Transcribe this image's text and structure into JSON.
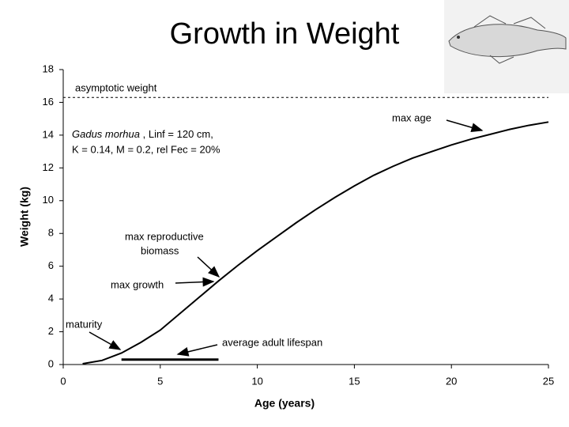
{
  "chart_data": {
    "type": "line",
    "title": "Growth in Weight",
    "x_label": "Age (years)",
    "y_label": "Weight (kg)",
    "x": [
      1,
      2,
      3,
      4,
      5,
      6,
      7,
      8,
      9,
      10,
      11,
      12,
      13,
      14,
      15,
      16,
      17,
      18,
      19,
      20,
      21,
      22,
      23,
      24,
      25
    ],
    "values": [
      0.05,
      0.25,
      0.7,
      1.35,
      2.1,
      3.1,
      4.1,
      5.1,
      6.05,
      6.95,
      7.8,
      8.65,
      9.45,
      10.2,
      10.9,
      11.55,
      12.1,
      12.6,
      13.0,
      13.4,
      13.75,
      14.05,
      14.35,
      14.6,
      14.8
    ],
    "color": "#000000",
    "xlim": [
      0,
      25
    ],
    "xticks": [
      0,
      5,
      10,
      15,
      20,
      25
    ],
    "ylim": [
      0,
      18
    ],
    "yticks": [
      0,
      2,
      4,
      6,
      8,
      10,
      12,
      14,
      16,
      18
    ],
    "grid": false,
    "asymptote": {
      "label": "asymptotic weight",
      "value": 16.3
    },
    "lifespan": {
      "label": "average adult lifespan",
      "x": [
        3,
        8
      ],
      "value": 0.3
    },
    "annotations": {
      "max_age": "max age",
      "species": "Gadus morhua",
      "species_params_1": " , Linf = 120 cm,",
      "species_params_2": "K = 0.14, M = 0.2, rel Fec = 20%",
      "max_reproductive_1": "max reproductive",
      "max_reproductive_2": "biomass",
      "max_growth": "max growth",
      "maturity": "maturity"
    }
  }
}
